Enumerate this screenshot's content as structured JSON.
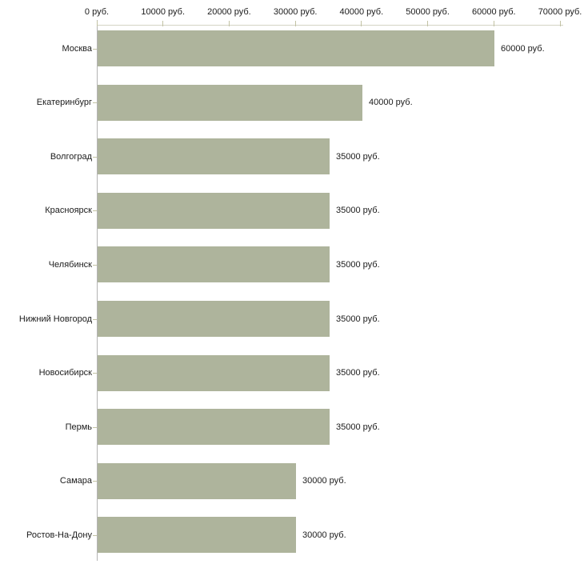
{
  "chart_data": {
    "type": "bar",
    "orientation": "horizontal",
    "title": "",
    "categories": [
      "Москва",
      "Екатеринбург",
      "Волгоград",
      "Красноярск",
      "Челябинск",
      "Нижний Новгород",
      "Новосибирск",
      "Пермь",
      "Самара",
      "Ростов-На-Дону"
    ],
    "values": [
      60000,
      40000,
      35000,
      35000,
      35000,
      35000,
      35000,
      35000,
      30000,
      30000
    ],
    "bar_labels": [
      "60000 руб.",
      "40000 руб.",
      "35000 руб.",
      "35000 руб.",
      "35000 руб.",
      "35000 руб.",
      "35000 руб.",
      "35000 руб.",
      "30000 руб.",
      "30000 руб."
    ],
    "x_tick_values": [
      0,
      10000,
      20000,
      30000,
      40000,
      50000,
      60000,
      70000
    ],
    "x_tick_labels": [
      "0 руб.",
      "10000 руб.",
      "20000 руб.",
      "30000 руб.",
      "40000 руб.",
      "50000 руб.",
      "60000 руб.",
      "70000 руб."
    ],
    "xlim": [
      0,
      70000
    ],
    "unit": "руб.",
    "grid": false,
    "legend": "none",
    "colors": {
      "bar": "#aeb49c",
      "value_axis_line": "#d4d4c4",
      "tick": "#c2c2a4",
      "category_axis_line": "#b4b4b4",
      "text": "#1b1b1b",
      "background": "#ffffff"
    }
  }
}
